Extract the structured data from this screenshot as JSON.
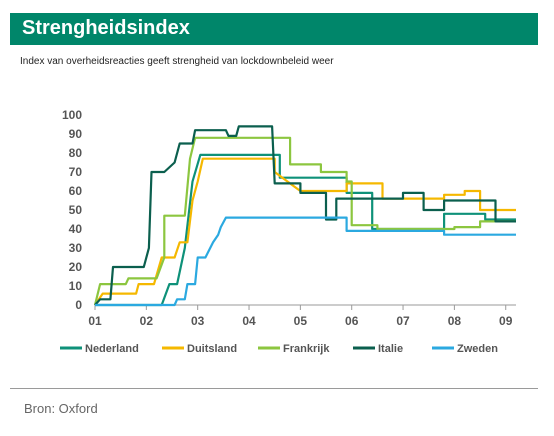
{
  "header": {
    "title": "Strengheidsindex",
    "subtitle": "Index van overheidsreacties geeft strengheid van lockdownbeleid weer"
  },
  "footer": {
    "source": "Bron: Oxford"
  },
  "chart_data": {
    "type": "line",
    "xlabel": "",
    "ylabel": "",
    "x_ticks": [
      "01",
      "02",
      "03",
      "04",
      "05",
      "06",
      "07",
      "08",
      "09"
    ],
    "xlim": [
      1,
      9.2
    ],
    "ylim": [
      0,
      100
    ],
    "y_ticks": [
      0,
      10,
      20,
      30,
      40,
      50,
      60,
      70,
      80,
      90,
      100
    ],
    "grid": false,
    "legend": "bottom",
    "series": [
      {
        "name": "Nederland",
        "color": "#0e9179",
        "points": [
          [
            1.0,
            0
          ],
          [
            2.3,
            0
          ],
          [
            2.45,
            11
          ],
          [
            2.6,
            11
          ],
          [
            2.75,
            30
          ],
          [
            2.9,
            65
          ],
          [
            3.05,
            79
          ],
          [
            4.6,
            79
          ],
          [
            4.6,
            67
          ],
          [
            5.9,
            67
          ],
          [
            5.9,
            59
          ],
          [
            6.4,
            59
          ],
          [
            6.4,
            40
          ],
          [
            7.8,
            40
          ],
          [
            7.8,
            48
          ],
          [
            8.6,
            48
          ],
          [
            8.6,
            45
          ],
          [
            9.2,
            45
          ]
        ]
      },
      {
        "name": "Duitsland",
        "color": "#f5b800",
        "points": [
          [
            1.0,
            0
          ],
          [
            1.15,
            6
          ],
          [
            1.8,
            6
          ],
          [
            1.85,
            11
          ],
          [
            2.15,
            11
          ],
          [
            2.3,
            25
          ],
          [
            2.55,
            25
          ],
          [
            2.65,
            33
          ],
          [
            2.8,
            33
          ],
          [
            2.9,
            55
          ],
          [
            3.0,
            65
          ],
          [
            3.1,
            77
          ],
          [
            4.5,
            77
          ],
          [
            4.5,
            70
          ],
          [
            4.9,
            62
          ],
          [
            5.0,
            60
          ],
          [
            5.9,
            60
          ],
          [
            5.9,
            64
          ],
          [
            6.6,
            64
          ],
          [
            6.6,
            56
          ],
          [
            7.8,
            56
          ],
          [
            7.8,
            58
          ],
          [
            8.2,
            58
          ],
          [
            8.2,
            60
          ],
          [
            8.5,
            60
          ],
          [
            8.5,
            50
          ],
          [
            9.2,
            50
          ]
        ]
      },
      {
        "name": "Frankrijk",
        "color": "#8cc63f",
        "points": [
          [
            1.0,
            0
          ],
          [
            1.1,
            11
          ],
          [
            1.6,
            11
          ],
          [
            1.65,
            14
          ],
          [
            2.2,
            14
          ],
          [
            2.35,
            25
          ],
          [
            2.35,
            47
          ],
          [
            2.75,
            47
          ],
          [
            2.85,
            77
          ],
          [
            2.95,
            88
          ],
          [
            4.8,
            88
          ],
          [
            4.8,
            74
          ],
          [
            5.4,
            74
          ],
          [
            5.4,
            70
          ],
          [
            5.9,
            70
          ],
          [
            5.9,
            65
          ],
          [
            6.0,
            65
          ],
          [
            6.0,
            42
          ],
          [
            6.5,
            42
          ],
          [
            6.5,
            40
          ],
          [
            8.0,
            40
          ],
          [
            8.0,
            41
          ],
          [
            8.5,
            41
          ],
          [
            8.5,
            44
          ],
          [
            9.2,
            44
          ]
        ]
      },
      {
        "name": "Italie",
        "color": "#0b5f4e",
        "points": [
          [
            1.0,
            0
          ],
          [
            1.1,
            3
          ],
          [
            1.3,
            3
          ],
          [
            1.35,
            20
          ],
          [
            1.95,
            20
          ],
          [
            2.05,
            30
          ],
          [
            2.1,
            70
          ],
          [
            2.35,
            70
          ],
          [
            2.55,
            75
          ],
          [
            2.65,
            85
          ],
          [
            2.9,
            85
          ],
          [
            2.95,
            92
          ],
          [
            3.55,
            92
          ],
          [
            3.6,
            89
          ],
          [
            3.75,
            89
          ],
          [
            3.8,
            94
          ],
          [
            4.45,
            94
          ],
          [
            4.5,
            64
          ],
          [
            5.0,
            64
          ],
          [
            5.0,
            59
          ],
          [
            5.5,
            59
          ],
          [
            5.5,
            45
          ],
          [
            5.7,
            45
          ],
          [
            5.7,
            56
          ],
          [
            7.0,
            56
          ],
          [
            7.0,
            59
          ],
          [
            7.4,
            59
          ],
          [
            7.4,
            50
          ],
          [
            7.8,
            50
          ],
          [
            7.8,
            55
          ],
          [
            8.8,
            55
          ],
          [
            8.8,
            44
          ],
          [
            9.2,
            44
          ]
        ]
      },
      {
        "name": "Zweden",
        "color": "#2ba9e0",
        "points": [
          [
            1.0,
            0
          ],
          [
            2.55,
            0
          ],
          [
            2.6,
            3
          ],
          [
            2.75,
            3
          ],
          [
            2.8,
            11
          ],
          [
            2.95,
            11
          ],
          [
            3.0,
            25
          ],
          [
            3.15,
            25
          ],
          [
            3.3,
            33
          ],
          [
            3.4,
            37
          ],
          [
            3.45,
            41
          ],
          [
            3.55,
            46
          ],
          [
            5.9,
            46
          ],
          [
            5.9,
            39
          ],
          [
            7.8,
            39
          ],
          [
            7.8,
            37
          ],
          [
            9.2,
            37
          ]
        ]
      }
    ]
  }
}
